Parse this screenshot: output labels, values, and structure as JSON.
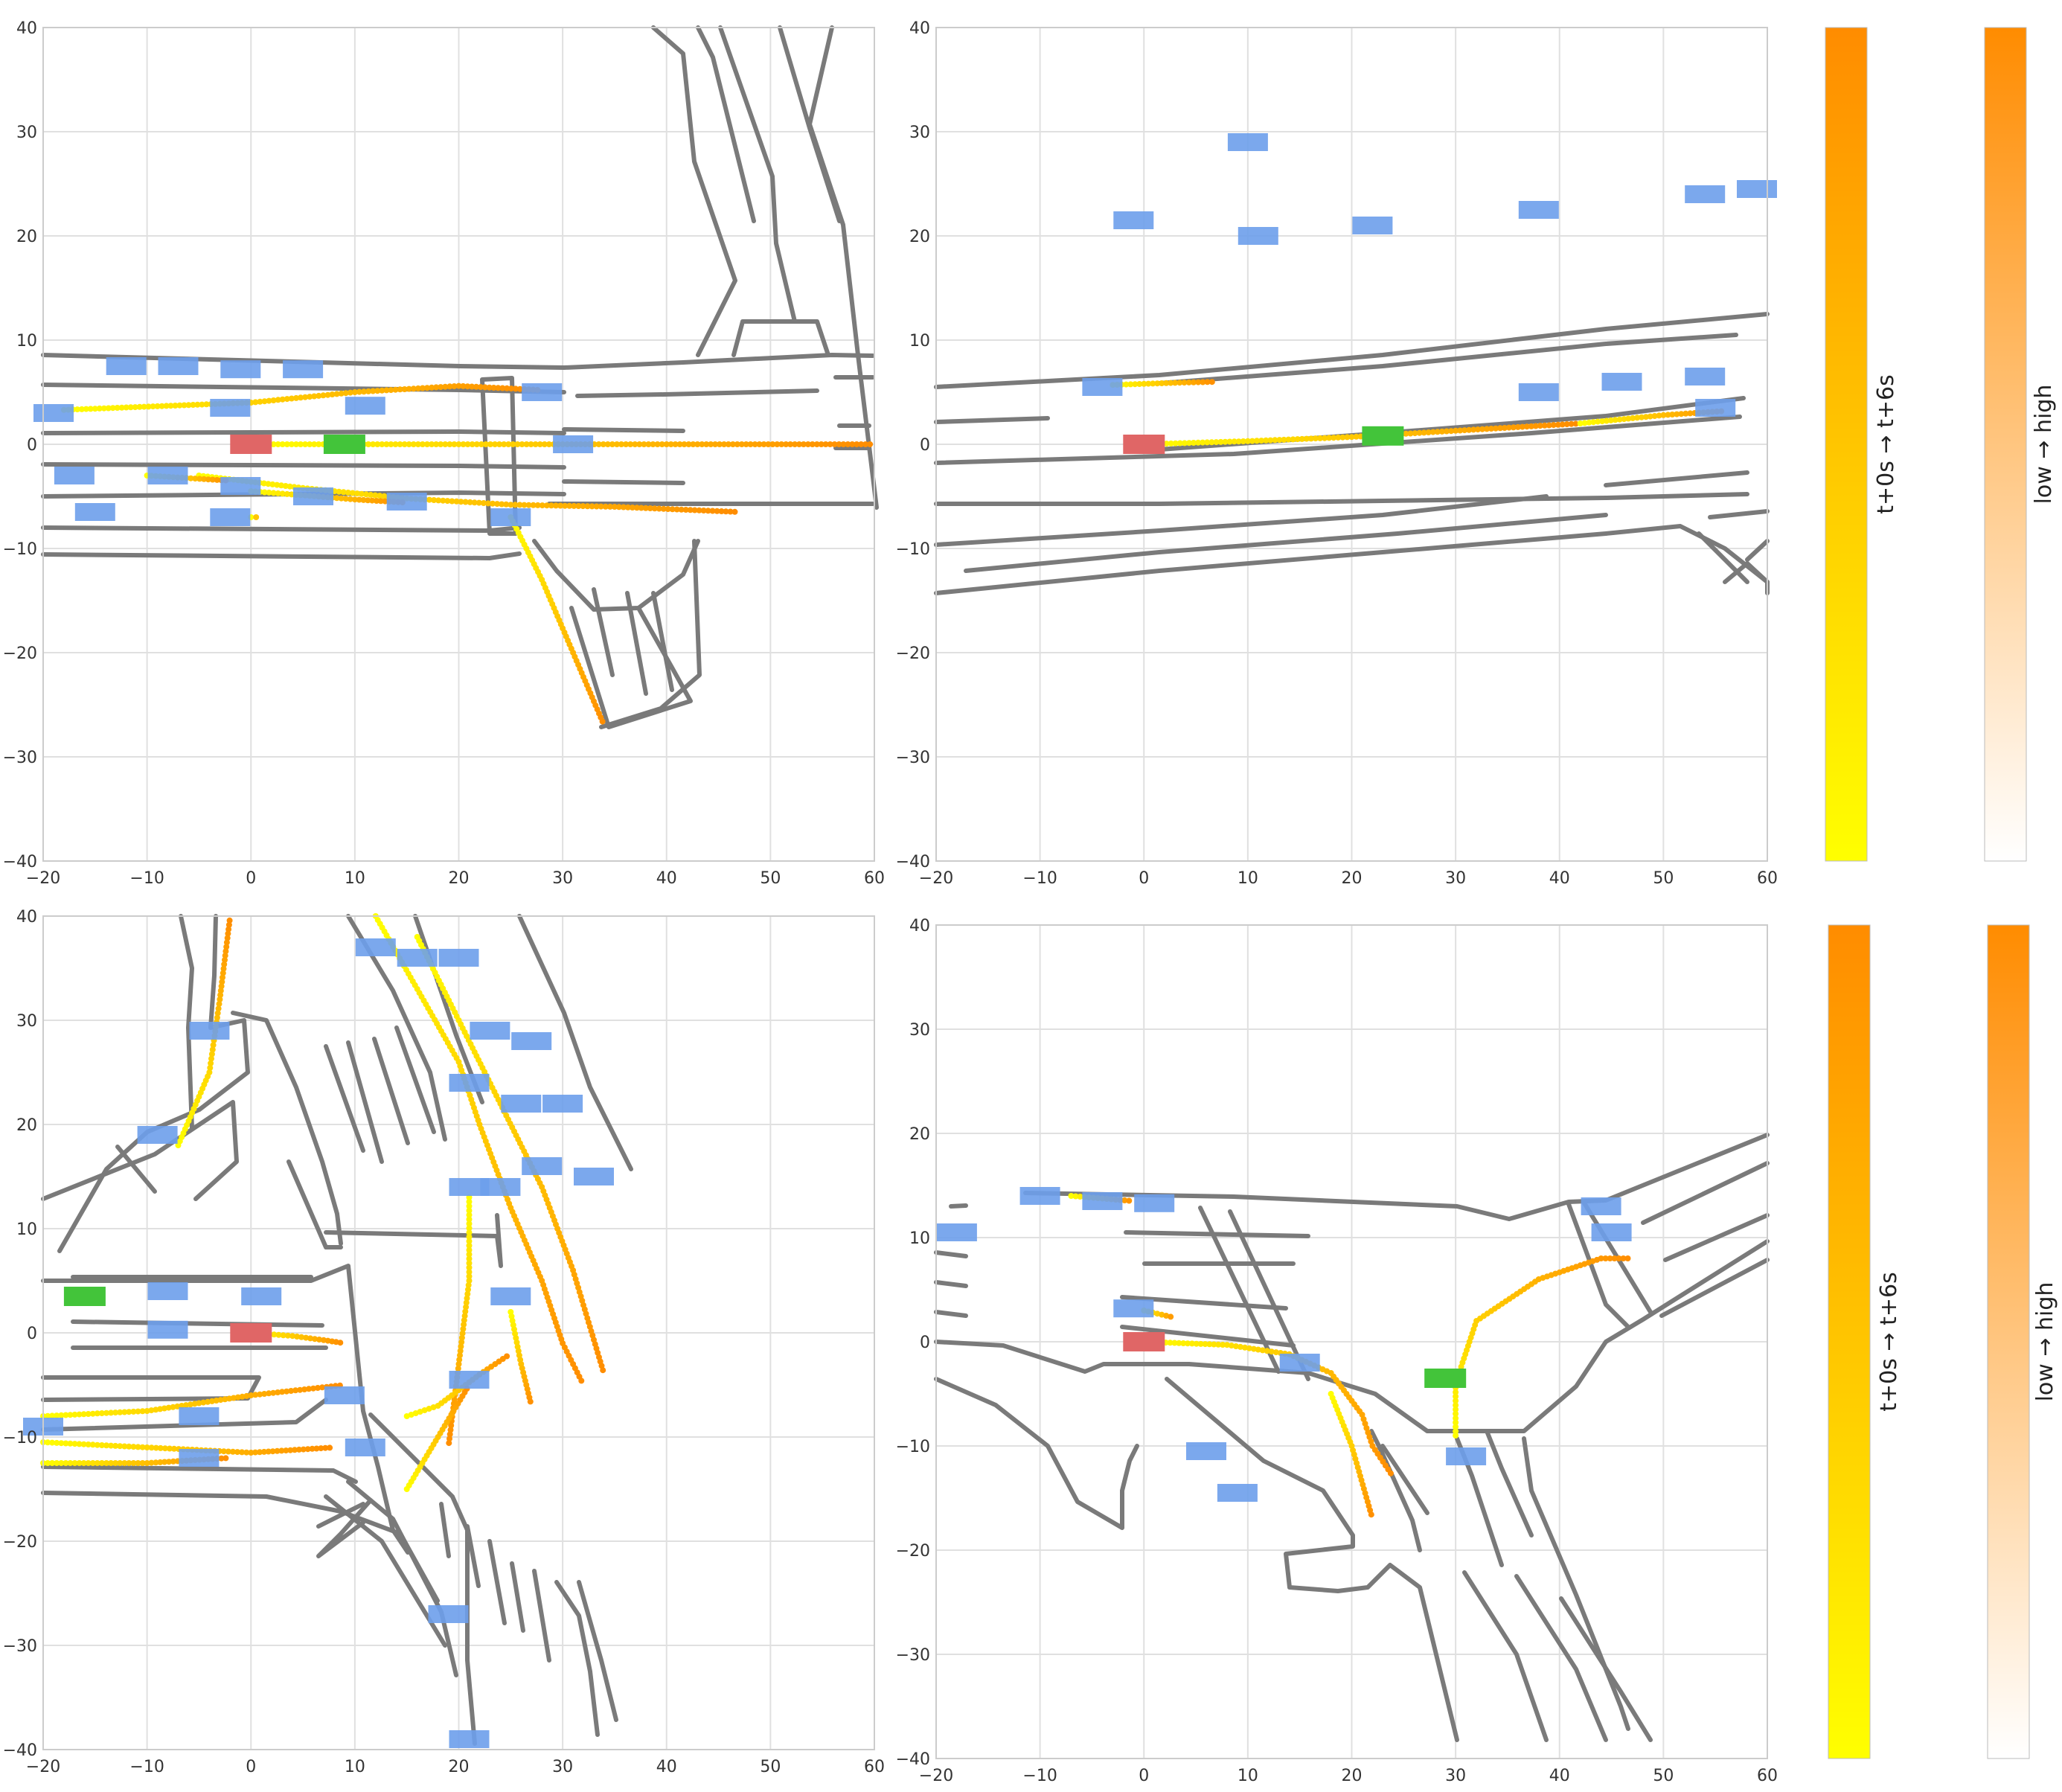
{
  "panels": [
    {
      "x_ticks": [
        "−20",
        "−10",
        "0",
        "10",
        "20",
        "30",
        "40",
        "50",
        "60"
      ],
      "y_ticks": [
        "40",
        "30",
        "20",
        "10",
        "0",
        "−10",
        "−20",
        "−30",
        "−40"
      ],
      "xlim": [
        -20,
        60
      ],
      "ylim": [
        -40,
        40
      ]
    },
    {
      "x_ticks": [
        "−20",
        "−10",
        "0",
        "10",
        "20",
        "30",
        "40",
        "50",
        "60"
      ],
      "y_ticks": [
        "40",
        "30",
        "20",
        "10",
        "0",
        "−10",
        "−20",
        "−30",
        "−40"
      ],
      "xlim": [
        -20,
        60
      ],
      "ylim": [
        -40,
        40
      ]
    },
    {
      "x_ticks": [
        "−20",
        "−10",
        "0",
        "10",
        "20",
        "30",
        "40",
        "50",
        "60"
      ],
      "y_ticks": [
        "40",
        "30",
        "20",
        "10",
        "0",
        "−10",
        "−20",
        "−30",
        "−40"
      ],
      "xlim": [
        -20,
        60
      ],
      "ylim": [
        -40,
        40
      ]
    },
    {
      "x_ticks": [
        "−20",
        "−10",
        "0",
        "10",
        "20",
        "30",
        "40",
        "50",
        "60"
      ],
      "y_ticks": [
        "40",
        "30",
        "20",
        "10",
        "0",
        "−10",
        "−20",
        "−30",
        "−40"
      ],
      "xlim": [
        -20,
        60
      ],
      "ylim": [
        -40,
        40
      ]
    }
  ],
  "colorbars": [
    {
      "label": "t+0s → t+6s",
      "colors": [
        "#ffff00",
        "#ff8c00"
      ]
    },
    {
      "label": "low → high",
      "colors": [
        "#ffffff",
        "#ff8c00"
      ]
    },
    {
      "label": "t+0s → t+6s",
      "colors": [
        "#ffff00",
        "#ff8c00"
      ]
    },
    {
      "label": "low → high",
      "colors": [
        "#ffffff",
        "#ff8c00"
      ]
    }
  ],
  "colors": {
    "road": "#7a7a7a",
    "agent": "#6d9eeb",
    "ego": "#e06666",
    "target": "#43c43a",
    "traj_start": "#ffff00",
    "traj_end": "#ff8c00",
    "grid": "#e0e0e0"
  },
  "chart_data": [
    {
      "type": "scatter",
      "xlim": [
        -20,
        60
      ],
      "ylim": [
        -40,
        40
      ],
      "grid": true,
      "ego": [
        0,
        0
      ],
      "target": [
        9,
        0
      ],
      "agents": [
        [
          -12,
          7.5
        ],
        [
          -7,
          7.5
        ],
        [
          -1,
          7.2
        ],
        [
          5,
          7.2
        ],
        [
          -2,
          3.5
        ],
        [
          11,
          3.7
        ],
        [
          28,
          5
        ],
        [
          -19,
          3
        ],
        [
          -17,
          -3
        ],
        [
          -8,
          -3
        ],
        [
          -1,
          -4
        ],
        [
          6,
          -5
        ],
        [
          15,
          -5.5
        ],
        [
          -15,
          -6.5
        ],
        [
          -2,
          -7
        ],
        [
          25,
          -7
        ],
        [
          31,
          0
        ]
      ],
      "trajectories": [
        {
          "points": [
            [
              -18,
              3.3
            ],
            [
              0,
              4
            ],
            [
              10,
              5
            ],
            [
              20,
              5.6
            ],
            [
              28,
              5.2
            ]
          ]
        },
        {
          "points": [
            [
              0,
              0
            ],
            [
              10,
              0
            ],
            [
              20,
              0
            ],
            [
              30,
              0
            ],
            [
              40,
              0
            ],
            [
              60,
              0
            ]
          ]
        },
        {
          "points": [
            [
              -5,
              -3
            ],
            [
              0,
              -3.6
            ],
            [
              5,
              -4.2
            ],
            [
              15,
              -5.2
            ],
            [
              25,
              -5.8
            ],
            [
              35,
              -6
            ],
            [
              47,
              -6.5
            ]
          ]
        },
        {
          "points": [
            [
              -10,
              -3
            ],
            [
              -2,
              -3.5
            ]
          ]
        },
        {
          "points": [
            [
              0,
              -7
            ],
            [
              1,
              -7
            ]
          ]
        },
        {
          "points": [
            [
              25,
              -7
            ],
            [
              28,
              -13
            ],
            [
              31,
              -20
            ],
            [
              34,
              -27
            ]
          ]
        },
        {
          "points": [
            [
              0,
              -4.5
            ],
            [
              10,
              -5.3
            ],
            [
              15,
              -5.6
            ]
          ]
        }
      ]
    },
    {
      "type": "scatter",
      "xlim": [
        -20,
        60
      ],
      "ylim": [
        -40,
        40
      ],
      "grid": true,
      "ego": [
        0,
        0
      ],
      "target": [
        23,
        0.8
      ],
      "agents": [
        [
          10,
          29
        ],
        [
          -1,
          21.5
        ],
        [
          11,
          20
        ],
        [
          22,
          21
        ],
        [
          38,
          22.5
        ],
        [
          54,
          24
        ],
        [
          59,
          24.5
        ],
        [
          -4,
          5.5
        ],
        [
          38,
          5
        ],
        [
          46,
          6
        ],
        [
          54,
          6.5
        ],
        [
          55,
          3.5
        ]
      ],
      "trajectories": [
        {
          "points": [
            [
              0,
              0
            ],
            [
              10,
              0.3
            ],
            [
              20,
              0.7
            ],
            [
              30,
              1.3
            ],
            [
              42,
              2
            ]
          ]
        },
        {
          "points": [
            [
              42,
              2
            ],
            [
              50,
              2.8
            ],
            [
              56,
              3.2
            ]
          ]
        },
        {
          "points": [
            [
              -3,
              5.7
            ],
            [
              3,
              5.9
            ],
            [
              7,
              6
            ]
          ]
        }
      ]
    },
    {
      "type": "scatter",
      "xlim": [
        -20,
        60
      ],
      "ylim": [
        -40,
        40
      ],
      "grid": true,
      "ego": [
        0,
        0
      ],
      "target": [
        -16,
        3.5
      ],
      "agents": [
        [
          -9,
          19
        ],
        [
          -4,
          29
        ],
        [
          -8,
          4
        ],
        [
          1,
          3.5
        ],
        [
          -8,
          0.3
        ],
        [
          -5,
          -8
        ],
        [
          -5,
          -12
        ],
        [
          -20,
          -9
        ],
        [
          9,
          -6
        ],
        [
          11,
          -11
        ],
        [
          12,
          37
        ],
        [
          16,
          36
        ],
        [
          20,
          36
        ],
        [
          23,
          29
        ],
        [
          27,
          28
        ],
        [
          21,
          24
        ],
        [
          26,
          22
        ],
        [
          30,
          22
        ],
        [
          21,
          14
        ],
        [
          24,
          14
        ],
        [
          28,
          16
        ],
        [
          33,
          15
        ],
        [
          25,
          3.5
        ],
        [
          21,
          -4.5
        ],
        [
          19,
          -27
        ],
        [
          21,
          -39
        ]
      ],
      "trajectories": [
        {
          "points": [
            [
              0,
              0
            ],
            [
              4,
              -0.3
            ],
            [
              7,
              -0.7
            ],
            [
              9,
              -1
            ]
          ]
        },
        {
          "points": [
            [
              -7,
              18
            ],
            [
              -4,
              25
            ],
            [
              -3,
              32
            ],
            [
              -2,
              40
            ]
          ]
        },
        {
          "points": [
            [
              12,
              40
            ],
            [
              16,
              33
            ],
            [
              20,
              26
            ],
            [
              22,
              20
            ],
            [
              25,
              12
            ],
            [
              28,
              5
            ],
            [
              30,
              -1
            ],
            [
              32,
              -5
            ]
          ]
        },
        {
          "points": [
            [
              16,
              38
            ],
            [
              20,
              30
            ],
            [
              24,
              22
            ],
            [
              28,
              14
            ],
            [
              31,
              6
            ],
            [
              34,
              -4
            ]
          ]
        },
        {
          "points": [
            [
              21,
              13
            ],
            [
              21,
              5
            ],
            [
              20,
              -3
            ],
            [
              19,
              -11
            ]
          ]
        },
        {
          "points": [
            [
              25,
              2
            ],
            [
              26,
              -3
            ],
            [
              27,
              -7
            ]
          ]
        },
        {
          "points": [
            [
              15,
              -8
            ],
            [
              18,
              -7
            ],
            [
              22,
              -4
            ],
            [
              25,
              -2
            ]
          ]
        },
        {
          "points": [
            [
              15,
              -15
            ],
            [
              18,
              -10
            ],
            [
              21,
              -5
            ]
          ]
        },
        {
          "points": [
            [
              -20,
              -8
            ],
            [
              -10,
              -7.5
            ],
            [
              0,
              -6
            ],
            [
              9,
              -5
            ]
          ]
        },
        {
          "points": [
            [
              -20,
              -10.5
            ],
            [
              -10,
              -11
            ],
            [
              0,
              -11.5
            ],
            [
              8,
              -11
            ]
          ]
        },
        {
          "points": [
            [
              -20,
              -12.5
            ],
            [
              -10,
              -12.5
            ],
            [
              -2,
              -12
            ]
          ]
        }
      ]
    },
    {
      "type": "scatter",
      "xlim": [
        -20,
        60
      ],
      "ylim": [
        -40,
        40
      ],
      "grid": true,
      "ego": [
        0,
        0
      ],
      "target": [
        29,
        -3.5
      ],
      "agents": [
        [
          -18,
          10.5
        ],
        [
          -10,
          14
        ],
        [
          -4,
          13.5
        ],
        [
          1,
          13.3
        ],
        [
          -1,
          3.2
        ],
        [
          6,
          -10.5
        ],
        [
          9,
          -14.5
        ],
        [
          15,
          -2
        ],
        [
          31,
          -11
        ],
        [
          44,
          13
        ],
        [
          45,
          10.5
        ]
      ],
      "trajectories": [
        {
          "points": [
            [
              0,
              0
            ],
            [
              8,
              -0.3
            ],
            [
              14,
              -1.2
            ],
            [
              18,
              -3
            ],
            [
              21,
              -7
            ],
            [
              22,
              -10
            ],
            [
              24,
              -13
            ]
          ]
        },
        {
          "points": [
            [
              18,
              -5
            ],
            [
              20,
              -10
            ],
            [
              22,
              -17
            ]
          ]
        },
        {
          "points": [
            [
              30,
              -9
            ],
            [
              30,
              -4
            ],
            [
              32,
              2
            ],
            [
              38,
              6
            ],
            [
              44,
              8
            ],
            [
              47,
              8
            ]
          ]
        },
        {
          "points": [
            [
              -7,
              14
            ],
            [
              -1,
              13.5
            ]
          ]
        },
        {
          "points": [
            [
              0,
              3
            ],
            [
              3,
              2.3
            ]
          ]
        }
      ]
    }
  ]
}
